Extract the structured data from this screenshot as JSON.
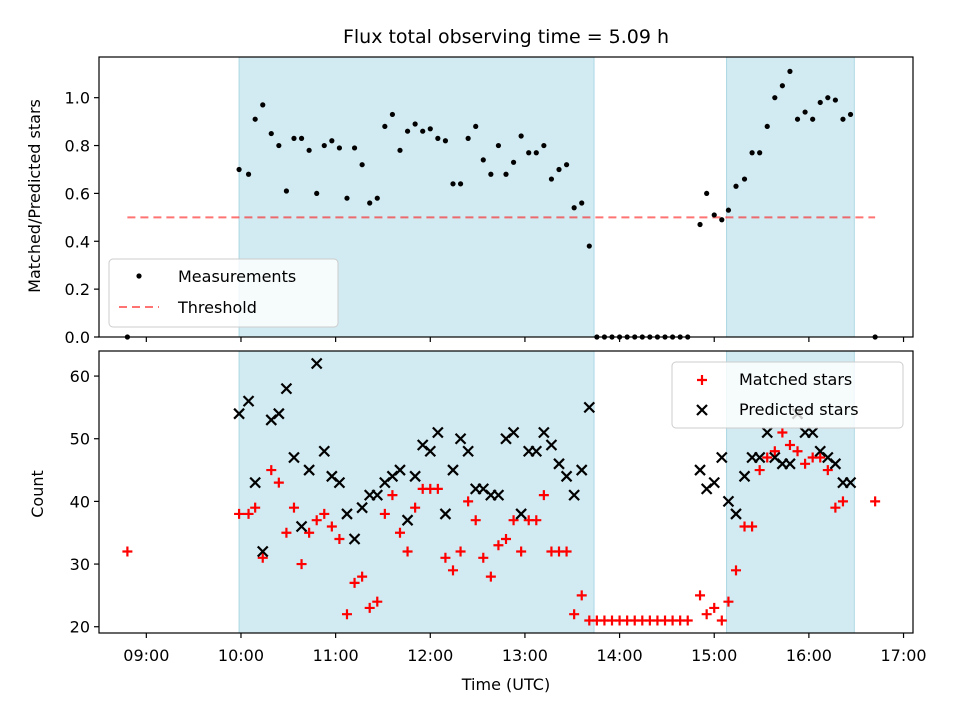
{
  "title": "Flux total observing time = 5.09 h",
  "colors": {
    "band": "#add8e6",
    "measurement": "#000000",
    "threshold": "#ff0000",
    "matched": "#ff0000",
    "predicted": "#000000"
  },
  "chart_data": [
    {
      "type": "scatter",
      "ylabel": "Matched/Predicted stars",
      "xlim": [
        8.5,
        17.1
      ],
      "ylim": [
        0,
        1.17
      ],
      "yticks": [
        "0.0",
        "0.2",
        "0.4",
        "0.6",
        "0.8",
        "1.0"
      ],
      "threshold": 0.5,
      "threshold_x": [
        8.8,
        16.7
      ],
      "observing_windows": [
        [
          9.98,
          13.73
        ],
        [
          15.13,
          16.48
        ]
      ],
      "legend_position": "lower-left",
      "legend": [
        "Measurements",
        "Threshold"
      ],
      "series": [
        {
          "name": "Measurements",
          "points": [
            [
              8.8,
              0.0
            ],
            [
              9.98,
              0.7
            ],
            [
              10.08,
              0.68
            ],
            [
              10.15,
              0.91
            ],
            [
              10.23,
              0.97
            ],
            [
              10.32,
              0.85
            ],
            [
              10.4,
              0.8
            ],
            [
              10.48,
              0.61
            ],
            [
              10.56,
              0.83
            ],
            [
              10.64,
              0.83
            ],
            [
              10.72,
              0.78
            ],
            [
              10.8,
              0.6
            ],
            [
              10.88,
              0.8
            ],
            [
              10.96,
              0.82
            ],
            [
              11.04,
              0.79
            ],
            [
              11.12,
              0.58
            ],
            [
              11.2,
              0.79
            ],
            [
              11.28,
              0.72
            ],
            [
              11.36,
              0.56
            ],
            [
              11.44,
              0.58
            ],
            [
              11.52,
              0.88
            ],
            [
              11.6,
              0.93
            ],
            [
              11.68,
              0.78
            ],
            [
              11.76,
              0.86
            ],
            [
              11.84,
              0.89
            ],
            [
              11.92,
              0.86
            ],
            [
              12.0,
              0.87
            ],
            [
              12.08,
              0.83
            ],
            [
              12.16,
              0.82
            ],
            [
              12.24,
              0.64
            ],
            [
              12.32,
              0.64
            ],
            [
              12.4,
              0.83
            ],
            [
              12.48,
              0.88
            ],
            [
              12.56,
              0.74
            ],
            [
              12.64,
              0.68
            ],
            [
              12.72,
              0.8
            ],
            [
              12.8,
              0.68
            ],
            [
              12.88,
              0.73
            ],
            [
              12.96,
              0.84
            ],
            [
              13.04,
              0.77
            ],
            [
              13.12,
              0.77
            ],
            [
              13.2,
              0.8
            ],
            [
              13.28,
              0.66
            ],
            [
              13.36,
              0.7
            ],
            [
              13.44,
              0.72
            ],
            [
              13.52,
              0.54
            ],
            [
              13.6,
              0.56
            ],
            [
              13.68,
              0.38
            ],
            [
              13.76,
              0.0
            ],
            [
              13.84,
              0.0
            ],
            [
              13.92,
              0.0
            ],
            [
              14.0,
              0.0
            ],
            [
              14.08,
              0.0
            ],
            [
              14.16,
              0.0
            ],
            [
              14.24,
              0.0
            ],
            [
              14.32,
              0.0
            ],
            [
              14.4,
              0.0
            ],
            [
              14.48,
              0.0
            ],
            [
              14.56,
              0.0
            ],
            [
              14.64,
              0.0
            ],
            [
              14.72,
              0.0
            ],
            [
              14.85,
              0.47
            ],
            [
              14.92,
              0.6
            ],
            [
              15.0,
              0.51
            ],
            [
              15.08,
              0.49
            ],
            [
              15.15,
              0.53
            ],
            [
              15.23,
              0.63
            ],
            [
              15.32,
              0.66
            ],
            [
              15.4,
              0.77
            ],
            [
              15.48,
              0.77
            ],
            [
              15.56,
              0.88
            ],
            [
              15.64,
              1.0
            ],
            [
              15.72,
              1.05
            ],
            [
              15.8,
              1.11
            ],
            [
              15.88,
              0.91
            ],
            [
              15.96,
              0.94
            ],
            [
              16.04,
              0.91
            ],
            [
              16.12,
              0.98
            ],
            [
              16.2,
              1.0
            ],
            [
              16.28,
              0.99
            ],
            [
              16.36,
              0.91
            ],
            [
              16.44,
              0.93
            ],
            [
              16.7,
              0.0
            ]
          ]
        }
      ]
    },
    {
      "type": "scatter",
      "xlabel": "Time (UTC)",
      "ylabel": "Count",
      "xlim": [
        8.5,
        17.1
      ],
      "ylim": [
        19,
        64
      ],
      "xticks": [
        "09:00",
        "10:00",
        "11:00",
        "12:00",
        "13:00",
        "14:00",
        "15:00",
        "16:00",
        "17:00"
      ],
      "xtick_values": [
        9,
        10,
        11,
        12,
        13,
        14,
        15,
        16,
        17
      ],
      "yticks": [
        "20",
        "30",
        "40",
        "50",
        "60"
      ],
      "observing_windows": [
        [
          9.98,
          13.73
        ],
        [
          15.13,
          16.48
        ]
      ],
      "legend_position": "top-right",
      "legend": [
        "Matched stars",
        "Predicted stars"
      ],
      "series": [
        {
          "name": "Matched stars",
          "marker": "+",
          "points": [
            [
              8.8,
              32
            ],
            [
              9.98,
              38
            ],
            [
              10.08,
              38
            ],
            [
              10.15,
              39
            ],
            [
              10.23,
              31
            ],
            [
              10.32,
              45
            ],
            [
              10.4,
              43
            ],
            [
              10.48,
              35
            ],
            [
              10.56,
              39
            ],
            [
              10.64,
              30
            ],
            [
              10.72,
              35
            ],
            [
              10.8,
              37
            ],
            [
              10.88,
              38
            ],
            [
              10.96,
              36
            ],
            [
              11.04,
              34
            ],
            [
              11.12,
              22
            ],
            [
              11.2,
              27
            ],
            [
              11.28,
              28
            ],
            [
              11.36,
              23
            ],
            [
              11.44,
              24
            ],
            [
              11.52,
              38
            ],
            [
              11.6,
              41
            ],
            [
              11.68,
              35
            ],
            [
              11.76,
              32
            ],
            [
              11.84,
              39
            ],
            [
              11.92,
              42
            ],
            [
              12.0,
              42
            ],
            [
              12.08,
              42
            ],
            [
              12.16,
              31
            ],
            [
              12.24,
              29
            ],
            [
              12.32,
              32
            ],
            [
              12.4,
              40
            ],
            [
              12.48,
              37
            ],
            [
              12.56,
              31
            ],
            [
              12.64,
              28
            ],
            [
              12.72,
              33
            ],
            [
              12.8,
              34
            ],
            [
              12.88,
              37
            ],
            [
              12.96,
              32
            ],
            [
              13.04,
              37
            ],
            [
              13.12,
              37
            ],
            [
              13.2,
              41
            ],
            [
              13.28,
              32
            ],
            [
              13.36,
              32
            ],
            [
              13.44,
              32
            ],
            [
              13.52,
              22
            ],
            [
              13.6,
              25
            ],
            [
              13.68,
              21
            ],
            [
              13.76,
              21
            ],
            [
              13.84,
              21
            ],
            [
              13.92,
              21
            ],
            [
              14.0,
              21
            ],
            [
              14.08,
              21
            ],
            [
              14.16,
              21
            ],
            [
              14.24,
              21
            ],
            [
              14.32,
              21
            ],
            [
              14.4,
              21
            ],
            [
              14.48,
              21
            ],
            [
              14.56,
              21
            ],
            [
              14.64,
              21
            ],
            [
              14.72,
              21
            ],
            [
              14.85,
              25
            ],
            [
              14.92,
              22
            ],
            [
              15.0,
              23
            ],
            [
              15.08,
              21
            ],
            [
              15.15,
              24
            ],
            [
              15.23,
              29
            ],
            [
              15.32,
              36
            ],
            [
              15.4,
              36
            ],
            [
              15.48,
              45
            ],
            [
              15.56,
              47
            ],
            [
              15.64,
              48
            ],
            [
              15.72,
              51
            ],
            [
              15.8,
              49
            ],
            [
              15.88,
              48
            ],
            [
              15.96,
              46
            ],
            [
              16.04,
              47
            ],
            [
              16.12,
              47
            ],
            [
              16.2,
              45
            ],
            [
              16.28,
              39
            ],
            [
              16.36,
              40
            ],
            [
              16.7,
              40
            ]
          ]
        },
        {
          "name": "Predicted stars",
          "marker": "x",
          "points": [
            [
              9.98,
              54
            ],
            [
              10.08,
              56
            ],
            [
              10.15,
              43
            ],
            [
              10.23,
              32
            ],
            [
              10.32,
              53
            ],
            [
              10.4,
              54
            ],
            [
              10.48,
              58
            ],
            [
              10.56,
              47
            ],
            [
              10.64,
              36
            ],
            [
              10.72,
              45
            ],
            [
              10.8,
              62
            ],
            [
              10.88,
              48
            ],
            [
              10.96,
              44
            ],
            [
              11.04,
              43
            ],
            [
              11.12,
              38
            ],
            [
              11.2,
              34
            ],
            [
              11.28,
              39
            ],
            [
              11.36,
              41
            ],
            [
              11.44,
              41
            ],
            [
              11.52,
              43
            ],
            [
              11.6,
              44
            ],
            [
              11.68,
              45
            ],
            [
              11.76,
              37
            ],
            [
              11.84,
              44
            ],
            [
              11.92,
              49
            ],
            [
              12.0,
              48
            ],
            [
              12.08,
              51
            ],
            [
              12.16,
              38
            ],
            [
              12.24,
              45
            ],
            [
              12.32,
              50
            ],
            [
              12.4,
              48
            ],
            [
              12.48,
              42
            ],
            [
              12.56,
              42
            ],
            [
              12.64,
              41
            ],
            [
              12.72,
              41
            ],
            [
              12.8,
              50
            ],
            [
              12.88,
              51
            ],
            [
              12.96,
              38
            ],
            [
              13.04,
              48
            ],
            [
              13.12,
              48
            ],
            [
              13.2,
              51
            ],
            [
              13.28,
              49
            ],
            [
              13.36,
              46
            ],
            [
              13.44,
              44
            ],
            [
              13.52,
              41
            ],
            [
              13.6,
              45
            ],
            [
              13.68,
              55
            ],
            [
              14.85,
              45
            ],
            [
              14.92,
              42
            ],
            [
              15.0,
              43
            ],
            [
              15.08,
              47
            ],
            [
              15.15,
              40
            ],
            [
              15.23,
              38
            ],
            [
              15.32,
              44
            ],
            [
              15.4,
              47
            ],
            [
              15.48,
              47
            ],
            [
              15.56,
              51
            ],
            [
              15.64,
              47
            ],
            [
              15.72,
              46
            ],
            [
              15.8,
              46
            ],
            [
              15.88,
              54
            ],
            [
              15.96,
              51
            ],
            [
              16.04,
              51
            ],
            [
              16.12,
              48
            ],
            [
              16.2,
              47
            ],
            [
              16.28,
              46
            ],
            [
              16.36,
              43
            ],
            [
              16.44,
              43
            ]
          ]
        }
      ]
    }
  ]
}
